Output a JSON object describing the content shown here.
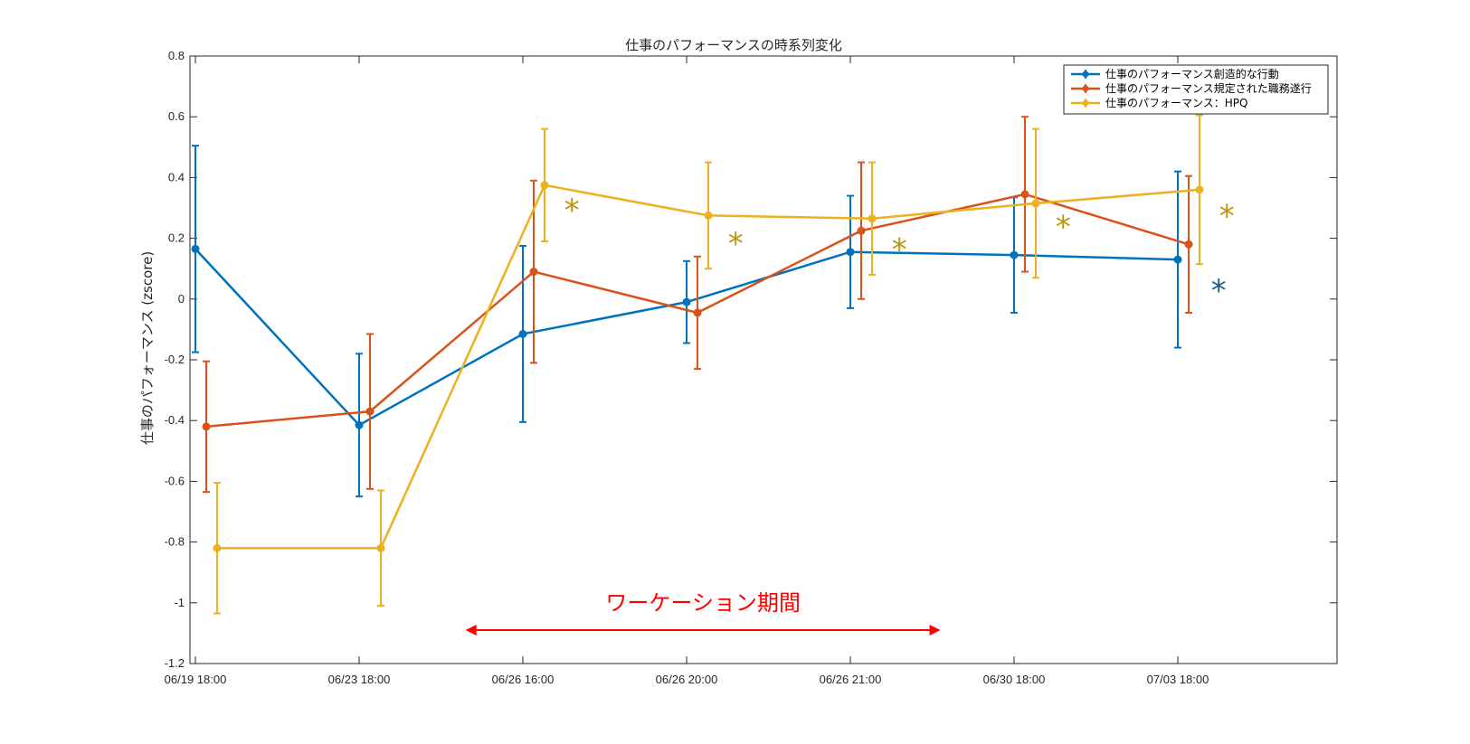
{
  "colors": {
    "axis": "#262626",
    "grid": "#dfdfdf",
    "annotation": "#ff0000",
    "star_gold": "#b8960f",
    "star_blue": "#1a5f8f"
  },
  "chart_data": {
    "type": "line",
    "title": "仕事のパフォーマンスの時系列変化",
    "xlabel": "",
    "ylabel": "仕事のパフォーマンス (zscore)",
    "categories": [
      "06/19 18:00",
      "06/23 18:00",
      "06/26 16:00",
      "06/26 20:00",
      "06/26 21:00",
      "06/30 18:00",
      "07/03 18:00"
    ],
    "ylim": [
      -1.2,
      0.8
    ],
    "yticks": [
      -1.2,
      -1,
      -0.8,
      -0.6,
      -0.4,
      -0.2,
      0,
      0.2,
      0.4,
      0.6,
      0.8
    ],
    "ytick_labels": [
      "-1.2",
      "-1",
      "-0.8",
      "-0.6",
      "-0.4",
      "-0.2",
      "0",
      "0.2",
      "0.4",
      "0.6",
      "0.8"
    ],
    "grid": false,
    "legend_position": "top-right",
    "series": [
      {
        "name": "仕事のパフォーマンス創造的な行動",
        "color": "#0072bd",
        "offset": 0,
        "values": [
          0.165,
          -0.415,
          -0.115,
          -0.01,
          0.155,
          0.145,
          0.13
        ],
        "err_low": [
          0.34,
          0.235,
          0.29,
          0.135,
          0.185,
          0.19,
          0.29
        ],
        "err_high": [
          0.34,
          0.235,
          0.29,
          0.135,
          0.185,
          0.19,
          0.29
        ]
      },
      {
        "name": "仕事のパフォーマンス規定された職務遂行",
        "color": "#d95319",
        "offset": 1,
        "values": [
          -0.42,
          -0.37,
          0.09,
          -0.045,
          0.225,
          0.345,
          0.18
        ],
        "err_low": [
          0.215,
          0.255,
          0.3,
          0.185,
          0.225,
          0.255,
          0.225
        ],
        "err_high": [
          0.215,
          0.255,
          0.3,
          0.185,
          0.225,
          0.255,
          0.225
        ]
      },
      {
        "name": "仕事のパフォーマンス：HPQ",
        "color": "#edb120",
        "offset": 2,
        "values": [
          -0.82,
          -0.82,
          0.375,
          0.275,
          0.265,
          0.315,
          0.36
        ],
        "err_low": [
          0.215,
          0.19,
          0.185,
          0.175,
          0.185,
          0.245,
          0.245
        ],
        "err_high": [
          0.215,
          0.19,
          0.185,
          0.175,
          0.185,
          0.245,
          0.245
        ]
      }
    ],
    "annotations": {
      "period_label": "ワーケーション期間",
      "period_start": 1.65,
      "period_end": 4.55,
      "period_y": -1.09,
      "stars": [
        {
          "symbol": "*",
          "x": 2.3,
          "y": 0.3,
          "color": "gold"
        },
        {
          "symbol": "*",
          "x": 3.3,
          "y": 0.19,
          "color": "gold"
        },
        {
          "symbol": "*",
          "x": 4.3,
          "y": 0.17,
          "color": "gold"
        },
        {
          "symbol": "*",
          "x": 5.3,
          "y": 0.245,
          "color": "gold"
        },
        {
          "symbol": "*",
          "x": 6.3,
          "y": 0.28,
          "color": "gold"
        },
        {
          "symbol": "*",
          "x": 6.25,
          "y": 0.035,
          "color": "blue"
        }
      ]
    }
  }
}
